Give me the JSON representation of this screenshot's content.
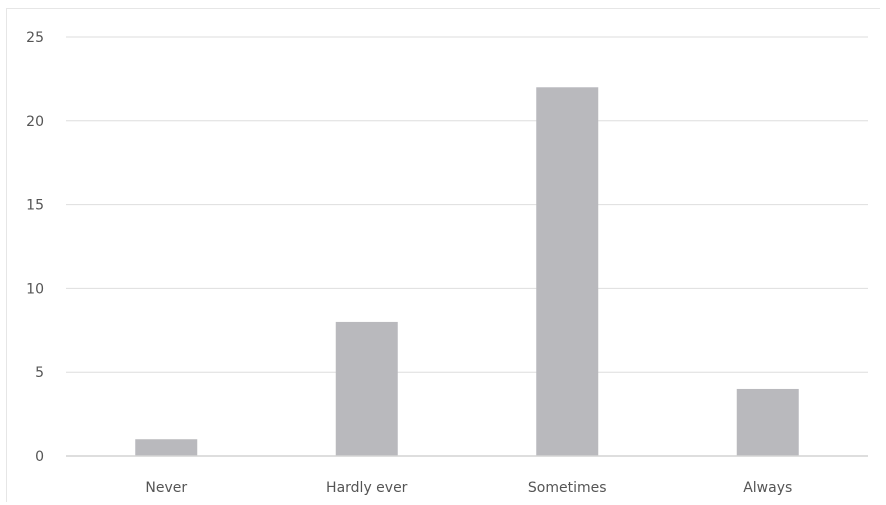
{
  "chart_data": {
    "type": "bar",
    "title": "",
    "xlabel": "",
    "ylabel": "",
    "categories": [
      "Never",
      "Hardly ever",
      "Sometimes",
      "Always"
    ],
    "values": [
      1,
      8,
      22,
      4
    ],
    "ylim": [
      0,
      25
    ],
    "yticks": [
      "0",
      "5",
      "10",
      "15",
      "20",
      "25"
    ],
    "grid": true,
    "legend": "none",
    "colors": {
      "bar": "#b9b9bd",
      "grid": "#dedede",
      "axis": "#d4d4d4",
      "text": "#555555"
    }
  }
}
